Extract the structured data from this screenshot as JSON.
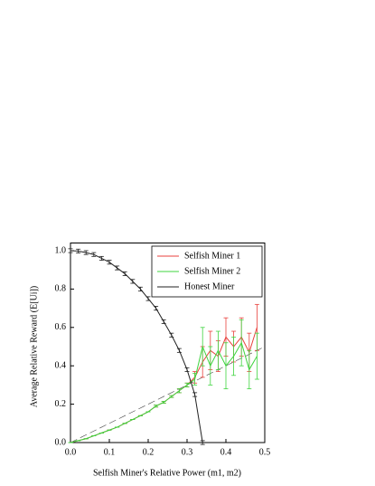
{
  "chart_data": {
    "type": "line",
    "x_label": "Selfish Miner's Relative Power (m1, m2)",
    "y_label": "Average Relative Reward (E[Ui])",
    "xlim": [
      0,
      0.5
    ],
    "ylim": [
      0,
      1.04
    ],
    "xticks": [
      {
        "value": 0,
        "label": "0.0"
      },
      0.1,
      0.2,
      0.3,
      0.4,
      0.5
    ],
    "yticks": [
      {
        "value": 0,
        "label": "0.0"
      },
      0.2,
      0.4,
      0.6,
      0.8,
      {
        "value": 1,
        "label": "1.0"
      }
    ],
    "legend": "top-right",
    "series": [
      {
        "name": "Selfish Miner 1",
        "color": "#e8413c",
        "x": [
          0,
          0.02,
          0.04,
          0.06,
          0.08,
          0.1,
          0.12,
          0.14,
          0.16,
          0.18,
          0.2,
          0.22,
          0.24,
          0.26,
          0.28,
          0.3,
          0.32,
          0.34,
          0.36,
          0.38,
          0.4,
          0.42,
          0.44,
          0.46,
          0.48
        ],
        "values": [
          0,
          0.01,
          0.02,
          0.035,
          0.05,
          0.065,
          0.08,
          0.1,
          0.12,
          0.14,
          0.16,
          0.19,
          0.21,
          0.24,
          0.27,
          0.3,
          0.34,
          0.42,
          0.48,
          0.45,
          0.55,
          0.5,
          0.55,
          0.47,
          0.6
        ],
        "errors": [
          0,
          0,
          0,
          0,
          0,
          0,
          0,
          0,
          0,
          0,
          0,
          0.005,
          0.005,
          0.005,
          0.01,
          0.01,
          0.03,
          0.08,
          0.1,
          0.08,
          0.1,
          0.08,
          0.1,
          0.1,
          0.12
        ]
      },
      {
        "name": "Selfish Miner 2",
        "color": "#3fd43f",
        "x": [
          0,
          0.02,
          0.04,
          0.06,
          0.08,
          0.1,
          0.12,
          0.14,
          0.16,
          0.18,
          0.2,
          0.22,
          0.24,
          0.26,
          0.28,
          0.3,
          0.32,
          0.34,
          0.36,
          0.38,
          0.4,
          0.42,
          0.44,
          0.46,
          0.48
        ],
        "values": [
          0,
          0.01,
          0.02,
          0.035,
          0.05,
          0.065,
          0.08,
          0.1,
          0.12,
          0.14,
          0.16,
          0.19,
          0.21,
          0.24,
          0.27,
          0.3,
          0.33,
          0.5,
          0.4,
          0.48,
          0.4,
          0.45,
          0.52,
          0.38,
          0.45
        ],
        "errors": [
          0,
          0,
          0,
          0,
          0,
          0,
          0,
          0,
          0,
          0,
          0,
          0.005,
          0.005,
          0.005,
          0.01,
          0.01,
          0.03,
          0.1,
          0.1,
          0.1,
          0.12,
          0.1,
          0.12,
          0.1,
          0.12
        ]
      },
      {
        "name": "Honest Miner",
        "color": "#222222",
        "x": [
          0,
          0.02,
          0.04,
          0.06,
          0.08,
          0.1,
          0.12,
          0.14,
          0.16,
          0.18,
          0.2,
          0.22,
          0.24,
          0.26,
          0.28,
          0.3,
          0.32,
          0.34
        ],
        "values": [
          1.0,
          0.998,
          0.99,
          0.98,
          0.96,
          0.94,
          0.91,
          0.88,
          0.84,
          0.8,
          0.75,
          0.7,
          0.63,
          0.56,
          0.48,
          0.38,
          0.25,
          0
        ],
        "errors": [
          0.01,
          0.01,
          0.01,
          0.01,
          0.01,
          0.01,
          0.01,
          0.01,
          0.01,
          0.01,
          0.01,
          0.01,
          0.01,
          0.01,
          0.01,
          0.01,
          0.01,
          0.01
        ]
      }
    ]
  }
}
